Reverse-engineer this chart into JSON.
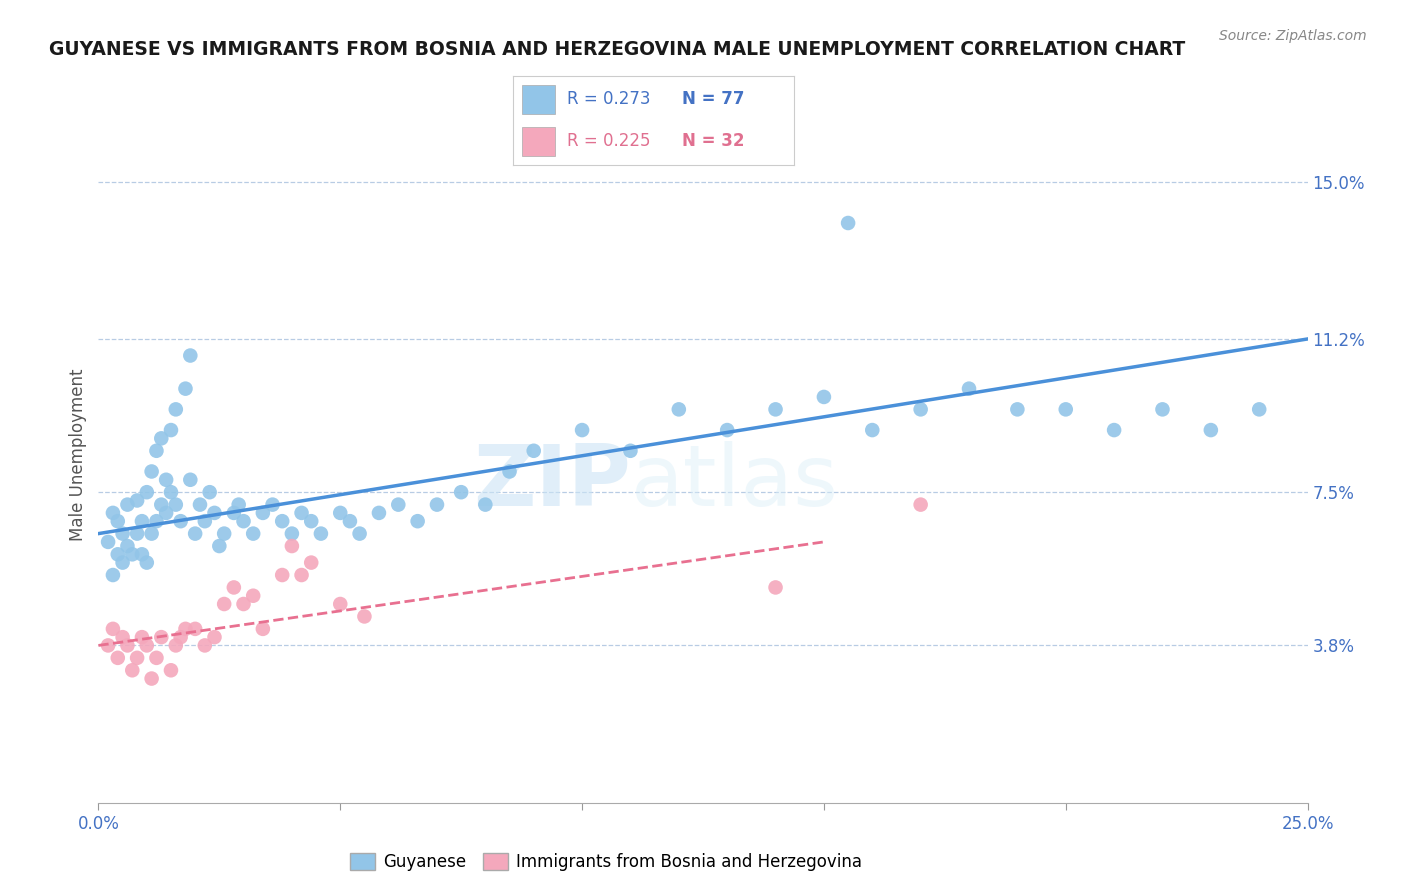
{
  "title": "GUYANESE VS IMMIGRANTS FROM BOSNIA AND HERZEGOVINA MALE UNEMPLOYMENT CORRELATION CHART",
  "source": "Source: ZipAtlas.com",
  "ylabel": "Male Unemployment",
  "ytick_labels": [
    "15.0%",
    "11.2%",
    "7.5%",
    "3.8%"
  ],
  "ytick_values": [
    0.15,
    0.112,
    0.075,
    0.038
  ],
  "xlim": [
    0.0,
    0.25
  ],
  "ylim": [
    0.0,
    0.168
  ],
  "blue_color": "#92c5e8",
  "pink_color": "#f4a8bc",
  "line_blue": "#4a90d9",
  "line_pink": "#e87090",
  "watermark_zip": "ZIP",
  "watermark_atlas": "atlas",
  "blue_scatter_x": [
    0.002,
    0.003,
    0.003,
    0.004,
    0.004,
    0.005,
    0.005,
    0.006,
    0.006,
    0.007,
    0.008,
    0.008,
    0.009,
    0.009,
    0.01,
    0.01,
    0.011,
    0.011,
    0.012,
    0.012,
    0.013,
    0.013,
    0.014,
    0.014,
    0.015,
    0.015,
    0.016,
    0.016,
    0.017,
    0.018,
    0.019,
    0.019,
    0.02,
    0.021,
    0.022,
    0.023,
    0.024,
    0.025,
    0.026,
    0.028,
    0.029,
    0.03,
    0.032,
    0.034,
    0.036,
    0.038,
    0.04,
    0.042,
    0.044,
    0.046,
    0.05,
    0.052,
    0.054,
    0.058,
    0.062,
    0.066,
    0.07,
    0.075,
    0.08,
    0.085,
    0.09,
    0.1,
    0.11,
    0.12,
    0.13,
    0.14,
    0.15,
    0.155,
    0.16,
    0.17,
    0.18,
    0.19,
    0.2,
    0.21,
    0.22,
    0.23,
    0.24
  ],
  "blue_scatter_y": [
    0.063,
    0.055,
    0.07,
    0.06,
    0.068,
    0.058,
    0.065,
    0.062,
    0.072,
    0.06,
    0.065,
    0.073,
    0.06,
    0.068,
    0.058,
    0.075,
    0.065,
    0.08,
    0.068,
    0.085,
    0.072,
    0.088,
    0.07,
    0.078,
    0.075,
    0.09,
    0.072,
    0.095,
    0.068,
    0.1,
    0.078,
    0.108,
    0.065,
    0.072,
    0.068,
    0.075,
    0.07,
    0.062,
    0.065,
    0.07,
    0.072,
    0.068,
    0.065,
    0.07,
    0.072,
    0.068,
    0.065,
    0.07,
    0.068,
    0.065,
    0.07,
    0.068,
    0.065,
    0.07,
    0.072,
    0.068,
    0.072,
    0.075,
    0.072,
    0.08,
    0.085,
    0.09,
    0.085,
    0.095,
    0.09,
    0.095,
    0.098,
    0.14,
    0.09,
    0.095,
    0.1,
    0.095,
    0.095,
    0.09,
    0.095,
    0.09,
    0.095
  ],
  "pink_scatter_x": [
    0.002,
    0.003,
    0.004,
    0.005,
    0.006,
    0.007,
    0.008,
    0.009,
    0.01,
    0.011,
    0.012,
    0.013,
    0.015,
    0.016,
    0.017,
    0.018,
    0.02,
    0.022,
    0.024,
    0.026,
    0.028,
    0.03,
    0.032,
    0.034,
    0.038,
    0.04,
    0.042,
    0.044,
    0.05,
    0.055,
    0.14,
    0.17
  ],
  "pink_scatter_y": [
    0.038,
    0.042,
    0.035,
    0.04,
    0.038,
    0.032,
    0.035,
    0.04,
    0.038,
    0.03,
    0.035,
    0.04,
    0.032,
    0.038,
    0.04,
    0.042,
    0.042,
    0.038,
    0.04,
    0.048,
    0.052,
    0.048,
    0.05,
    0.042,
    0.055,
    0.062,
    0.055,
    0.058,
    0.048,
    0.045,
    0.052,
    0.072
  ],
  "blue_line_x": [
    0.0,
    0.25
  ],
  "blue_line_y": [
    0.065,
    0.112
  ],
  "pink_line_x": [
    0.0,
    0.15
  ],
  "pink_line_y": [
    0.038,
    0.063
  ],
  "xtick_positions": [
    0.0,
    0.05,
    0.1,
    0.15,
    0.2,
    0.25
  ],
  "xtick_labels_show": [
    "0.0%",
    "",
    "",
    "",
    "",
    "25.0%"
  ]
}
